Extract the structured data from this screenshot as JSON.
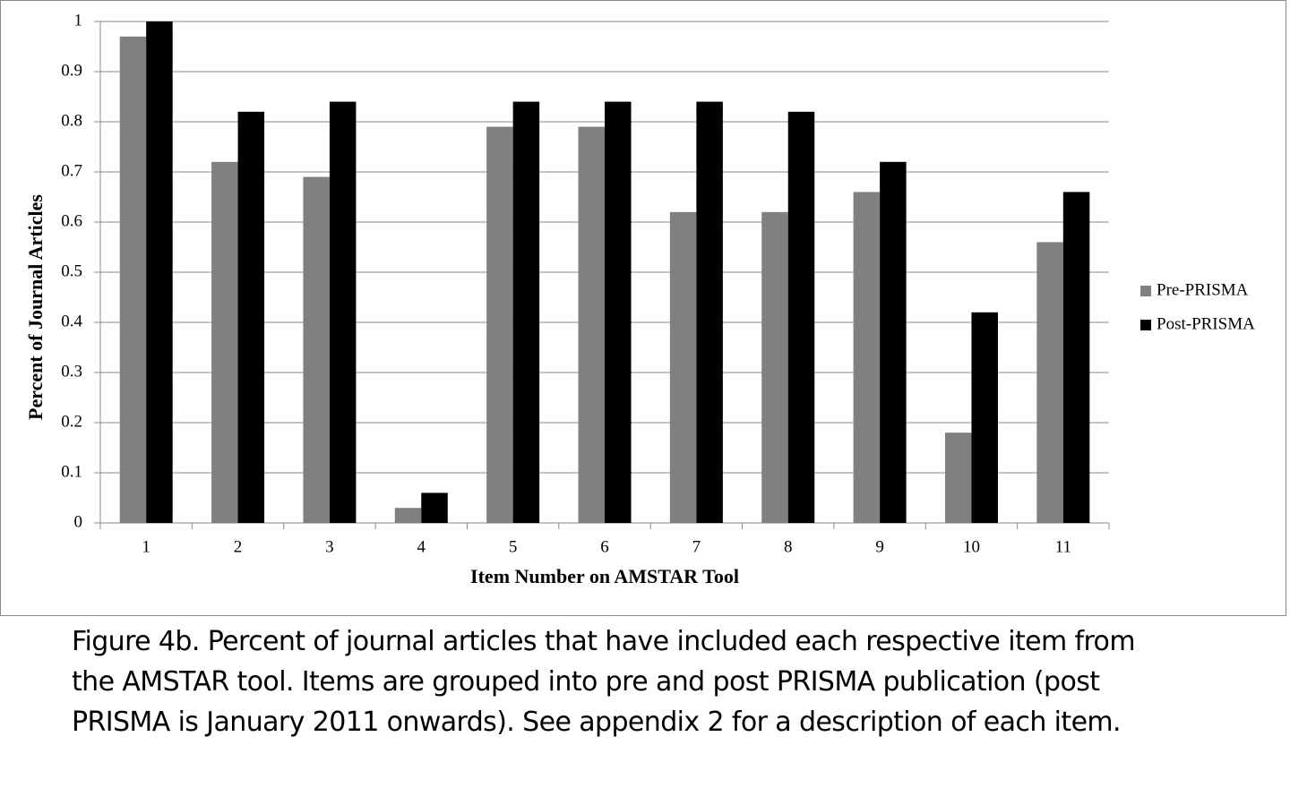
{
  "chart_data": {
    "type": "bar",
    "y_label": "Percent of Journal Articles",
    "x_label": "Item Number on AMSTAR Tool",
    "categories": [
      "1",
      "2",
      "3",
      "4",
      "5",
      "6",
      "7",
      "8",
      "9",
      "10",
      "11"
    ],
    "series": [
      {
        "name": "Pre-PRISMA",
        "color": "#808080",
        "values": [
          0.97,
          0.72,
          0.69,
          0.03,
          0.79,
          0.79,
          0.62,
          0.62,
          0.66,
          0.18,
          0.56
        ]
      },
      {
        "name": "Post-PRISMA",
        "color": "#000000",
        "values": [
          1,
          0.82,
          0.84,
          0.06,
          0.84,
          0.84,
          0.84,
          0.82,
          0.72,
          0.42,
          0.66
        ]
      }
    ],
    "ylim": [
      0,
      1
    ],
    "yticks": [
      0,
      0.1,
      0.2,
      0.3,
      0.4,
      0.5,
      0.6,
      0.7,
      0.8,
      0.9,
      1
    ],
    "grid": true,
    "legend": "right"
  },
  "caption": [
    "Figure 4b. Percent of journal articles that have included each respective item from",
    "the AMSTAR tool. Items are grouped into pre and post PRISMA publication (post",
    "PRISMA is January 2011 onwards). See appendix 2 for a description of each item."
  ]
}
